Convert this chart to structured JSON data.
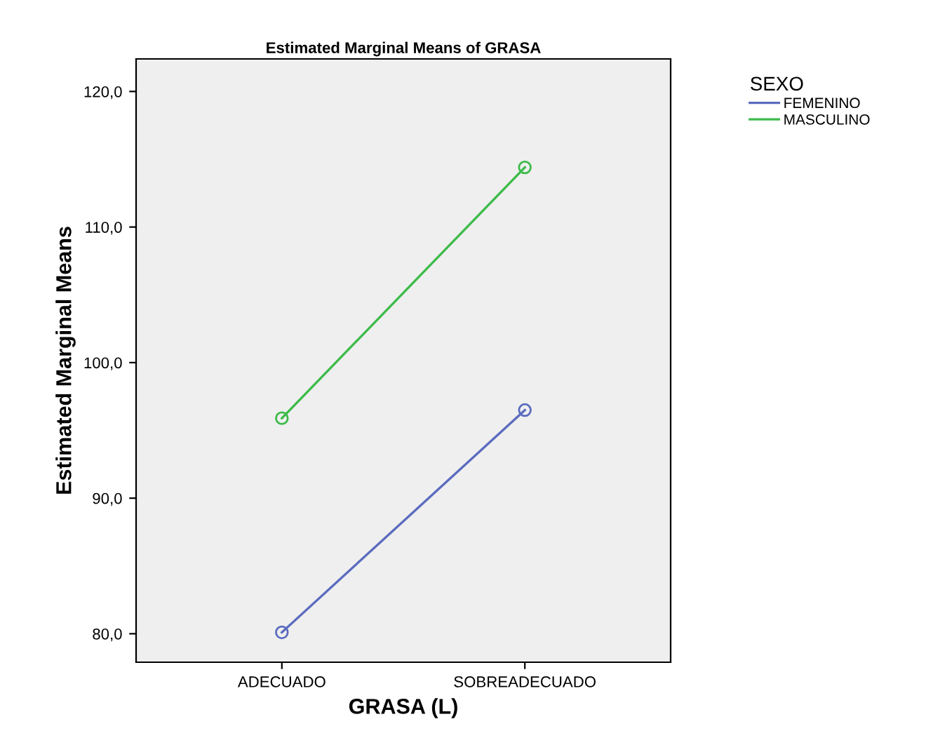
{
  "chart_data": {
    "type": "line",
    "title": "Estimated Marginal Means of GRASA",
    "xlabel": "GRASA (L)",
    "ylabel": "Estimated Marginal Means",
    "legend_title": "SEXO",
    "categories": [
      "ADECUADO",
      "SOBREADECUADO"
    ],
    "series": [
      {
        "name": "FEMENINO",
        "color": "#5b6bbf",
        "values": [
          80.1,
          96.5
        ]
      },
      {
        "name": "MASCULINO",
        "color": "#3dbb4a",
        "values": [
          95.9,
          114.4
        ]
      }
    ],
    "ylim": [
      77.9,
      122.4
    ],
    "yticks": [
      {
        "value": 80,
        "label": "80,0"
      },
      {
        "value": 90,
        "label": "90,0"
      },
      {
        "value": 100,
        "label": "100,0"
      },
      {
        "value": 110,
        "label": "110,0"
      },
      {
        "value": 120,
        "label": "120,0"
      }
    ],
    "marker": "circle",
    "line_style": "solid",
    "legend": "right",
    "grid": false
  }
}
